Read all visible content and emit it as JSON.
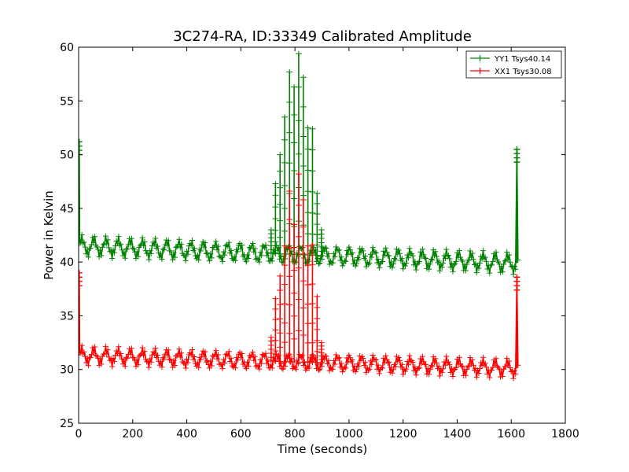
{
  "chart_data": {
    "type": "line",
    "title": "3C274-RA, ID:33349 Calibrated Amplitude",
    "xlabel": "Time (seconds)",
    "ylabel": "Power in Kelvin",
    "xlim": [
      0,
      1800
    ],
    "ylim": [
      25,
      60
    ],
    "xticks": [
      "0",
      "200",
      "400",
      "600",
      "800",
      "1000",
      "1200",
      "1400",
      "1600",
      "1800"
    ],
    "yticks": [
      "25",
      "30",
      "35",
      "40",
      "45",
      "50",
      "55",
      "60"
    ],
    "grid": false,
    "legend_position": "top-right",
    "series": [
      {
        "name": "YY1 Tsys40.14",
        "color": "#008000",
        "baseline_start": 41.5,
        "baseline_end": 39.9,
        "oscillation_amplitude": 0.7,
        "oscillation_period": 45,
        "x_start": 2,
        "x_end": 1625,
        "edge_points": [
          {
            "x": 2,
            "y": 51.2
          },
          {
            "x": 1621,
            "y": 50.5
          },
          {
            "x": 1625,
            "y": 40.2
          }
        ],
        "spikes": [
          {
            "x": 712,
            "y": 43.0
          },
          {
            "x": 728,
            "y": 47.3
          },
          {
            "x": 745,
            "y": 50.0
          },
          {
            "x": 762,
            "y": 53.5
          },
          {
            "x": 780,
            "y": 57.7
          },
          {
            "x": 797,
            "y": 56.3
          },
          {
            "x": 814,
            "y": 59.4
          },
          {
            "x": 831,
            "y": 57.2
          },
          {
            "x": 848,
            "y": 52.5
          },
          {
            "x": 865,
            "y": 52.4
          },
          {
            "x": 882,
            "y": 46.4
          },
          {
            "x": 898,
            "y": 43.0
          }
        ]
      },
      {
        "name": "XX1 Tsys30.08",
        "color": "#ff0000",
        "baseline_start": 31.3,
        "baseline_end": 30.1,
        "oscillation_amplitude": 0.6,
        "oscillation_period": 45,
        "x_start": 2,
        "x_end": 1625,
        "edge_points": [
          {
            "x": 2,
            "y": 39.0
          },
          {
            "x": 1621,
            "y": 38.6
          },
          {
            "x": 1625,
            "y": 30.4
          }
        ],
        "spikes": [
          {
            "x": 712,
            "y": 33.0
          },
          {
            "x": 728,
            "y": 36.6
          },
          {
            "x": 745,
            "y": 38.7
          },
          {
            "x": 762,
            "y": 41.5
          },
          {
            "x": 780,
            "y": 46.6
          },
          {
            "x": 797,
            "y": 43.5
          },
          {
            "x": 814,
            "y": 48.2
          },
          {
            "x": 831,
            "y": 45.8
          },
          {
            "x": 848,
            "y": 41.5
          },
          {
            "x": 865,
            "y": 41.6
          },
          {
            "x": 882,
            "y": 36.8
          },
          {
            "x": 898,
            "y": 32.5
          }
        ]
      }
    ]
  }
}
